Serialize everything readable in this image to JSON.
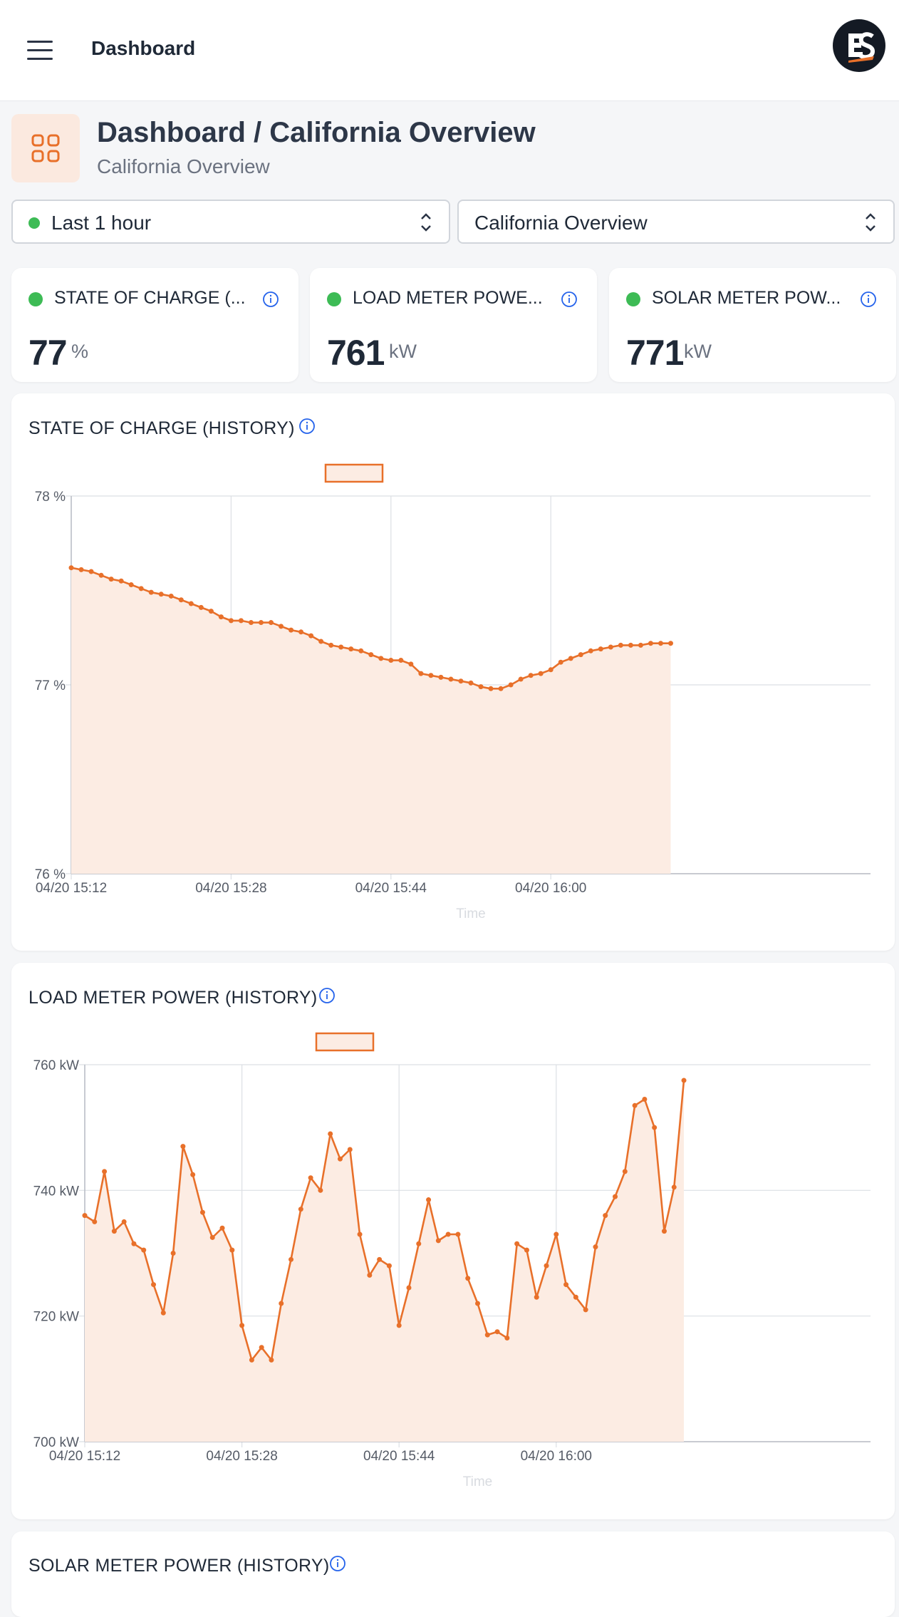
{
  "topbar": {
    "title": "Dashboard",
    "menu_icon": "hamburger-menu-icon",
    "logo_letters": "ES"
  },
  "header": {
    "title": "Dashboard / California Overview",
    "subtitle": "California Overview",
    "icon": "grid-icon"
  },
  "filters": {
    "time_range": "Last 1 hour",
    "view": "California Overview",
    "status_color": "#3dbb55"
  },
  "stats": [
    {
      "title": "STATE OF CHARGE (...",
      "value": "77",
      "unit": "%"
    },
    {
      "title": "LOAD METER POWE...",
      "value": "761",
      "unit": "kW"
    },
    {
      "title": "SOLAR METER POW...",
      "value": "771",
      "unit": "kW"
    }
  ],
  "colors": {
    "accent": "#e8702a",
    "fill": "#fcece3",
    "status": "#3dbb55",
    "info": "#2563eb"
  },
  "chart_data": [
    {
      "type": "area",
      "title": "STATE OF CHARGE (HISTORY)",
      "xlabel": "Time",
      "ylabel": "",
      "x_ticks": [
        "04/20 15:12",
        "04/20 15:28",
        "04/20 15:44",
        "04/20 16:00"
      ],
      "y_ticks": [
        "78 %",
        "77 %",
        "76 %"
      ],
      "ylim": [
        76,
        78
      ],
      "grid": true,
      "legend": "top-center",
      "series": [
        {
          "values": [
            77.62,
            77.61,
            77.6,
            77.58,
            77.56,
            77.55,
            77.53,
            77.51,
            77.49,
            77.48,
            77.47,
            77.45,
            77.43,
            77.41,
            77.39,
            77.36,
            77.34,
            77.34,
            77.33,
            77.33,
            77.33,
            77.31,
            77.29,
            77.28,
            77.26,
            77.23,
            77.21,
            77.2,
            77.19,
            77.18,
            77.16,
            77.14,
            77.13,
            77.13,
            77.11,
            77.06,
            77.05,
            77.04,
            77.03,
            77.02,
            77.01,
            76.99,
            76.98,
            76.98,
            77.0,
            77.03,
            77.05,
            77.06,
            77.08,
            77.12,
            77.14,
            77.16,
            77.18,
            77.19,
            77.2,
            77.21,
            77.21,
            77.21,
            77.22,
            77.22,
            77.22
          ]
        }
      ]
    },
    {
      "type": "area",
      "title": "LOAD METER POWER (HISTORY)",
      "xlabel": "Time",
      "ylabel": "",
      "x_ticks": [
        "04/20 15:12",
        "04/20 15:28",
        "04/20 15:44",
        "04/20 16:00"
      ],
      "y_ticks": [
        "760 kW",
        "740 kW",
        "720 kW",
        "700 kW"
      ],
      "ylim": [
        700,
        760
      ],
      "grid": true,
      "legend": "top-center",
      "series": [
        {
          "values": [
            736,
            735,
            743,
            733.5,
            735,
            731.5,
            730.5,
            725,
            720.5,
            730,
            747,
            742.5,
            736.5,
            732.5,
            734,
            730.5,
            718.5,
            713,
            715,
            713,
            722,
            729,
            737,
            742,
            740,
            749,
            745,
            746.5,
            733,
            726.5,
            729,
            728,
            718.5,
            724.5,
            731.5,
            738.5,
            732,
            733,
            733,
            726,
            722,
            717,
            717.5,
            716.5,
            731.5,
            730.5,
            723,
            728,
            733,
            725,
            723,
            721,
            731,
            736,
            739,
            743,
            753.5,
            754.5,
            750,
            733.5,
            740.5,
            757.5
          ]
        }
      ]
    }
  ],
  "solar_chart": {
    "title": "SOLAR METER POWER (HISTORY)"
  }
}
